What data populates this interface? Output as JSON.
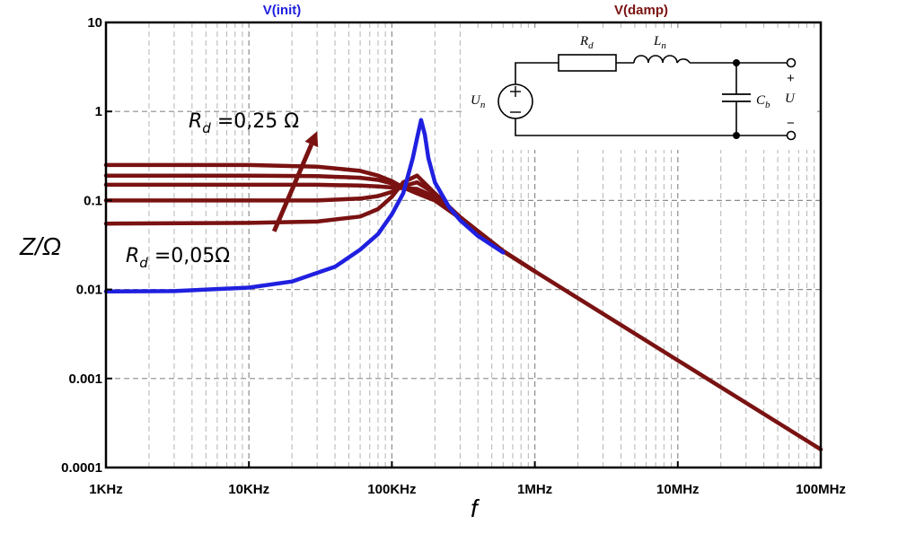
{
  "chart_data": {
    "type": "line",
    "xscale": "log",
    "yscale": "log",
    "xlim": [
      1000,
      100000000
    ],
    "ylim": [
      0.0001,
      10
    ],
    "x_ticks": [
      {
        "value": 1000,
        "label": "1KHz"
      },
      {
        "value": 10000,
        "label": "10KHz"
      },
      {
        "value": 100000,
        "label": "100KHz"
      },
      {
        "value": 1000000,
        "label": "1MHz"
      },
      {
        "value": 10000000,
        "label": "10MHz"
      },
      {
        "value": 100000000,
        "label": "100MHz"
      }
    ],
    "y_ticks": [
      {
        "value": 10,
        "label": "10"
      },
      {
        "value": 1,
        "label": "1"
      },
      {
        "value": 0.1,
        "label": "0.1"
      },
      {
        "value": 0.01,
        "label": "0.01"
      },
      {
        "value": 0.001,
        "label": "0.001"
      },
      {
        "value": 0.0001,
        "label": "0.0001"
      }
    ],
    "xlabel": "f",
    "ylabel": "Z/Ω",
    "grid": true,
    "legend": [
      {
        "name": "V(init)",
        "color": "#2020e0"
      },
      {
        "name": "V(damp)",
        "color": "#7a1212"
      }
    ],
    "series": [
      {
        "name": "V(init)",
        "color": "#2020e0",
        "x": [
          1000,
          3000,
          10000,
          20000,
          40000,
          60000,
          80000,
          100000,
          120000,
          140000,
          150000,
          160000,
          170000,
          180000,
          200000,
          250000,
          300000,
          400000,
          600000
        ],
        "y": [
          0.0095,
          0.0096,
          0.0105,
          0.0123,
          0.018,
          0.028,
          0.042,
          0.07,
          0.12,
          0.3,
          0.5,
          0.8,
          0.55,
          0.3,
          0.16,
          0.085,
          0.06,
          0.04,
          0.026
        ]
      },
      {
        "name": "V(damp) Rd=0.05",
        "color": "#7a1212",
        "x": [
          1000,
          10000,
          30000,
          60000,
          80000,
          100000,
          120000,
          150000,
          200000,
          300000,
          600000,
          1000000,
          10000000,
          100000000
        ],
        "y": [
          0.055,
          0.056,
          0.058,
          0.066,
          0.08,
          0.11,
          0.16,
          0.19,
          0.12,
          0.065,
          0.027,
          0.016,
          0.0016,
          0.00016
        ]
      },
      {
        "name": "V(damp) Rd=0.10",
        "color": "#7a1212",
        "x": [
          1000,
          10000,
          30000,
          60000,
          80000,
          100000,
          120000,
          150000,
          200000,
          300000,
          600000,
          1000000
        ],
        "y": [
          0.1,
          0.1,
          0.1,
          0.105,
          0.112,
          0.125,
          0.145,
          0.16,
          0.12,
          0.065,
          0.027,
          0.016
        ]
      },
      {
        "name": "V(damp) Rd=0.15",
        "color": "#7a1212",
        "x": [
          1000,
          10000,
          30000,
          60000,
          80000,
          100000,
          120000,
          150000,
          200000,
          300000,
          600000,
          1000000
        ],
        "y": [
          0.15,
          0.15,
          0.15,
          0.147,
          0.144,
          0.14,
          0.137,
          0.135,
          0.11,
          0.065,
          0.027,
          0.016
        ]
      },
      {
        "name": "V(damp) Rd=0.20",
        "color": "#7a1212",
        "x": [
          1000,
          10000,
          30000,
          60000,
          80000,
          100000,
          120000,
          150000,
          200000,
          300000,
          600000,
          1000000
        ],
        "y": [
          0.19,
          0.19,
          0.188,
          0.18,
          0.17,
          0.155,
          0.14,
          0.125,
          0.105,
          0.064,
          0.027,
          0.016
        ]
      },
      {
        "name": "V(damp) Rd=0.25",
        "color": "#7a1212",
        "x": [
          1000,
          10000,
          30000,
          60000,
          80000,
          100000,
          120000,
          150000,
          200000,
          300000,
          600000,
          1000000
        ],
        "y": [
          0.25,
          0.25,
          0.24,
          0.215,
          0.19,
          0.165,
          0.14,
          0.12,
          0.1,
          0.063,
          0.027,
          0.016
        ]
      }
    ],
    "annotations": {
      "rd_high": {
        "var": "R",
        "sub": "d",
        "value": " =0,25 Ω"
      },
      "rd_low": {
        "var": "R",
        "sub": "d",
        "value": " =0,05Ω"
      },
      "arrow": {
        "from": {
          "x": 15000,
          "y": 0.045
        },
        "to": {
          "x": 30000,
          "y": 0.6
        }
      }
    },
    "inset_labels": {
      "source": {
        "var": "U",
        "sub": "n"
      },
      "resistor": {
        "var": "R",
        "sub": "d"
      },
      "inductor": {
        "var": "L",
        "sub": "n"
      },
      "capacitor": {
        "var": "C",
        "sub": "b"
      },
      "output": "U",
      "plus": "+",
      "minus": "−"
    }
  }
}
